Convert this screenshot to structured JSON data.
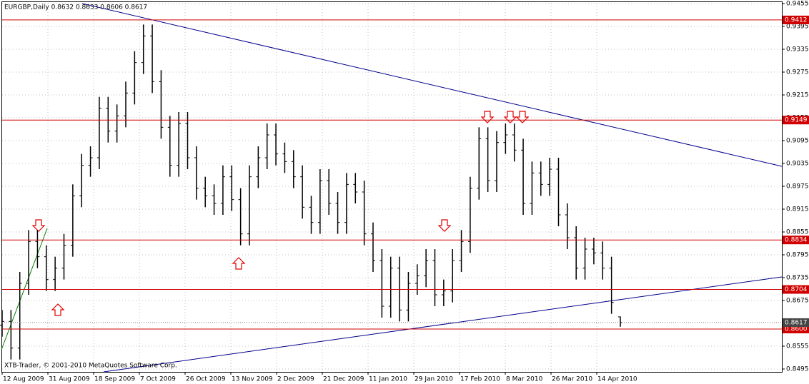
{
  "chart_data": {
    "type": "ohlc",
    "title": "EURGBP,Daily  0.8632 0.8633 0.8606 0.8617",
    "footer": "XTB-Trader, © 2001-2010 MetaQuotes Software Corp.",
    "categories": [
      "12 Aug 2009",
      "31 Aug 2009",
      "18 Sep 2009",
      "7 Oct 2009",
      "26 Oct 2009",
      "13 Nov 2009",
      "2 Dec 2009",
      "21 Dec 2009",
      "11 Jan 2010",
      "29 Jan 2010",
      "17 Feb 2010",
      "8 Mar 2010",
      "26 Mar 2010",
      "14 Apr 2010"
    ],
    "ylim": [
      0.8495,
      0.9455
    ],
    "yticks": [
      0.9455,
      0.9395,
      0.9335,
      0.9275,
      0.9215,
      0.9155,
      0.9095,
      0.9035,
      0.8975,
      0.8915,
      0.8855,
      0.8795,
      0.8735,
      0.8675,
      0.8555,
      0.8495
    ],
    "grid": true,
    "color": "#000000",
    "open": [
      0.861,
      0.862,
      0.855,
      0.872,
      0.883,
      0.879,
      0.873,
      0.876,
      0.882,
      0.895,
      0.903,
      0.905,
      0.918,
      0.912,
      0.916,
      0.922,
      0.93,
      0.937,
      0.925,
      0.913,
      0.903,
      0.914,
      0.905,
      0.897,
      0.895,
      0.893,
      0.9,
      0.894,
      0.885,
      0.9,
      0.905,
      0.911,
      0.906,
      0.904,
      0.9,
      0.892,
      0.888,
      0.899,
      0.893,
      0.888,
      0.898,
      0.896,
      0.885,
      0.878,
      0.866,
      0.876,
      0.865,
      0.872,
      0.874,
      0.878,
      0.869,
      0.87,
      0.878,
      0.883,
      0.897,
      0.91,
      0.899,
      0.909,
      0.911,
      0.907,
      0.893,
      0.901,
      0.898,
      0.902,
      0.89,
      0.884,
      0.876,
      0.881,
      0.88,
      0.876,
      0.8632
    ],
    "high": [
      0.865,
      0.865,
      0.875,
      0.886,
      0.886,
      0.882,
      0.879,
      0.885,
      0.898,
      0.906,
      0.908,
      0.921,
      0.921,
      0.919,
      0.925,
      0.933,
      0.94,
      0.94,
      0.928,
      0.916,
      0.917,
      0.917,
      0.908,
      0.9,
      0.898,
      0.903,
      0.903,
      0.897,
      0.903,
      0.908,
      0.914,
      0.914,
      0.909,
      0.907,
      0.903,
      0.895,
      0.902,
      0.902,
      0.896,
      0.901,
      0.901,
      0.899,
      0.888,
      0.881,
      0.879,
      0.879,
      0.875,
      0.877,
      0.881,
      0.881,
      0.873,
      0.881,
      0.886,
      0.9,
      0.913,
      0.913,
      0.912,
      0.914,
      0.914,
      0.91,
      0.904,
      0.904,
      0.905,
      0.905,
      0.893,
      0.887,
      0.884,
      0.884,
      0.883,
      0.879,
      0.8633
    ],
    "low": [
      0.858,
      0.852,
      0.852,
      0.869,
      0.876,
      0.87,
      0.87,
      0.873,
      0.879,
      0.892,
      0.9,
      0.902,
      0.909,
      0.909,
      0.913,
      0.919,
      0.927,
      0.922,
      0.91,
      0.9,
      0.9,
      0.902,
      0.894,
      0.892,
      0.89,
      0.89,
      0.891,
      0.882,
      0.882,
      0.897,
      0.902,
      0.903,
      0.901,
      0.897,
      0.889,
      0.885,
      0.885,
      0.89,
      0.885,
      0.885,
      0.893,
      0.882,
      0.875,
      0.863,
      0.863,
      0.862,
      0.862,
      0.869,
      0.871,
      0.866,
      0.866,
      0.867,
      0.875,
      0.88,
      0.894,
      0.896,
      0.896,
      0.906,
      0.904,
      0.89,
      0.89,
      0.895,
      0.895,
      0.887,
      0.881,
      0.873,
      0.873,
      0.877,
      0.873,
      0.864,
      0.8606
    ],
    "close": [
      0.862,
      0.855,
      0.872,
      0.883,
      0.879,
      0.873,
      0.876,
      0.882,
      0.895,
      0.903,
      0.905,
      0.918,
      0.912,
      0.916,
      0.922,
      0.93,
      0.937,
      0.925,
      0.913,
      0.903,
      0.914,
      0.905,
      0.897,
      0.895,
      0.893,
      0.9,
      0.894,
      0.885,
      0.9,
      0.905,
      0.911,
      0.906,
      0.904,
      0.9,
      0.892,
      0.888,
      0.899,
      0.893,
      0.888,
      0.898,
      0.896,
      0.885,
      0.878,
      0.866,
      0.876,
      0.865,
      0.872,
      0.874,
      0.878,
      0.869,
      0.87,
      0.878,
      0.883,
      0.897,
      0.91,
      0.899,
      0.909,
      0.911,
      0.907,
      0.893,
      0.901,
      0.898,
      0.902,
      0.89,
      0.884,
      0.876,
      0.881,
      0.88,
      0.876,
      0.867,
      0.8617
    ],
    "levels": [
      0.9412,
      0.9149,
      0.8834,
      0.8704,
      {
        "value": 0.86,
        "label": "0.8600"
      }
    ],
    "level_color": "#d00000",
    "last_price": 0.8617
  }
}
